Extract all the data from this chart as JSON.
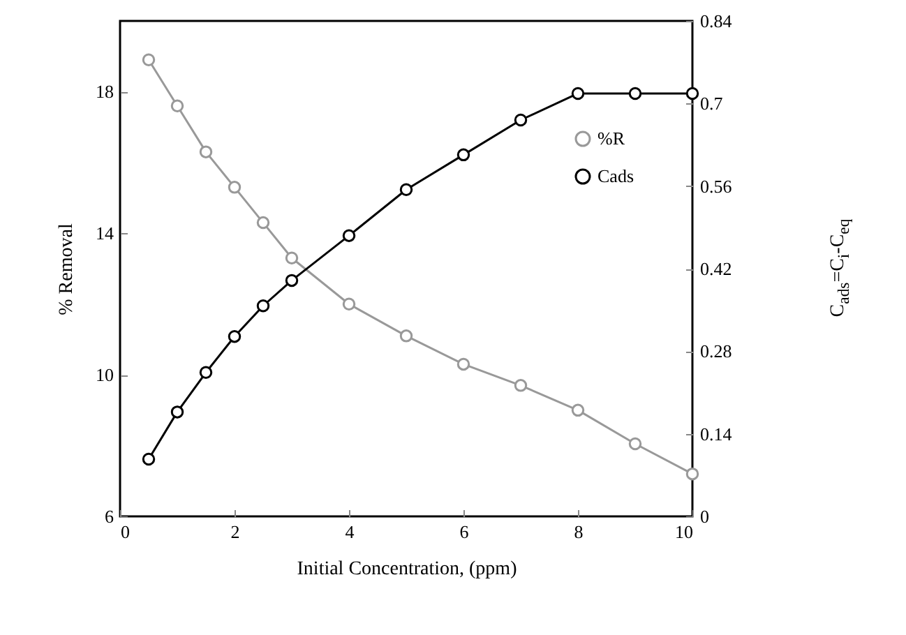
{
  "chart_data": {
    "type": "line",
    "xlabel": "Initial Concentration, (ppm)",
    "ylabel": "% Removal",
    "y2label": "C$_{ads}$=C$_{i}$-C$_{eq}$",
    "x": [
      0.5,
      1,
      1.5,
      2,
      2.5,
      3,
      4,
      5,
      6,
      7,
      8,
      9,
      10
    ],
    "series": [
      {
        "name": "%R",
        "color": "#999999",
        "values": [
          18.9,
          17.6,
          16.3,
          15.3,
          14.3,
          13.3,
          12.0,
          11.1,
          10.3,
          9.7,
          9.0,
          8.05,
          7.2
        ]
      },
      {
        "name": "Cads",
        "color": "#000000",
        "axis": "y2",
        "values": [
          0.097,
          0.177,
          0.244,
          0.305,
          0.357,
          0.4,
          0.476,
          0.554,
          0.613,
          0.672,
          0.717,
          0.717,
          0.717
        ]
      }
    ],
    "xlim": [
      0,
      10
    ],
    "xticks": [
      0,
      2,
      4,
      6,
      8,
      10
    ],
    "ylim": [
      6,
      20
    ],
    "yticks": [
      6,
      10,
      14,
      18
    ],
    "y2lim": [
      0,
      0.84
    ],
    "y2ticks": [
      0,
      0.14,
      0.28,
      0.42,
      0.56,
      0.7,
      0.84
    ],
    "marker": "circle",
    "line_style": "solid",
    "legend": "top right",
    "grid": false
  }
}
